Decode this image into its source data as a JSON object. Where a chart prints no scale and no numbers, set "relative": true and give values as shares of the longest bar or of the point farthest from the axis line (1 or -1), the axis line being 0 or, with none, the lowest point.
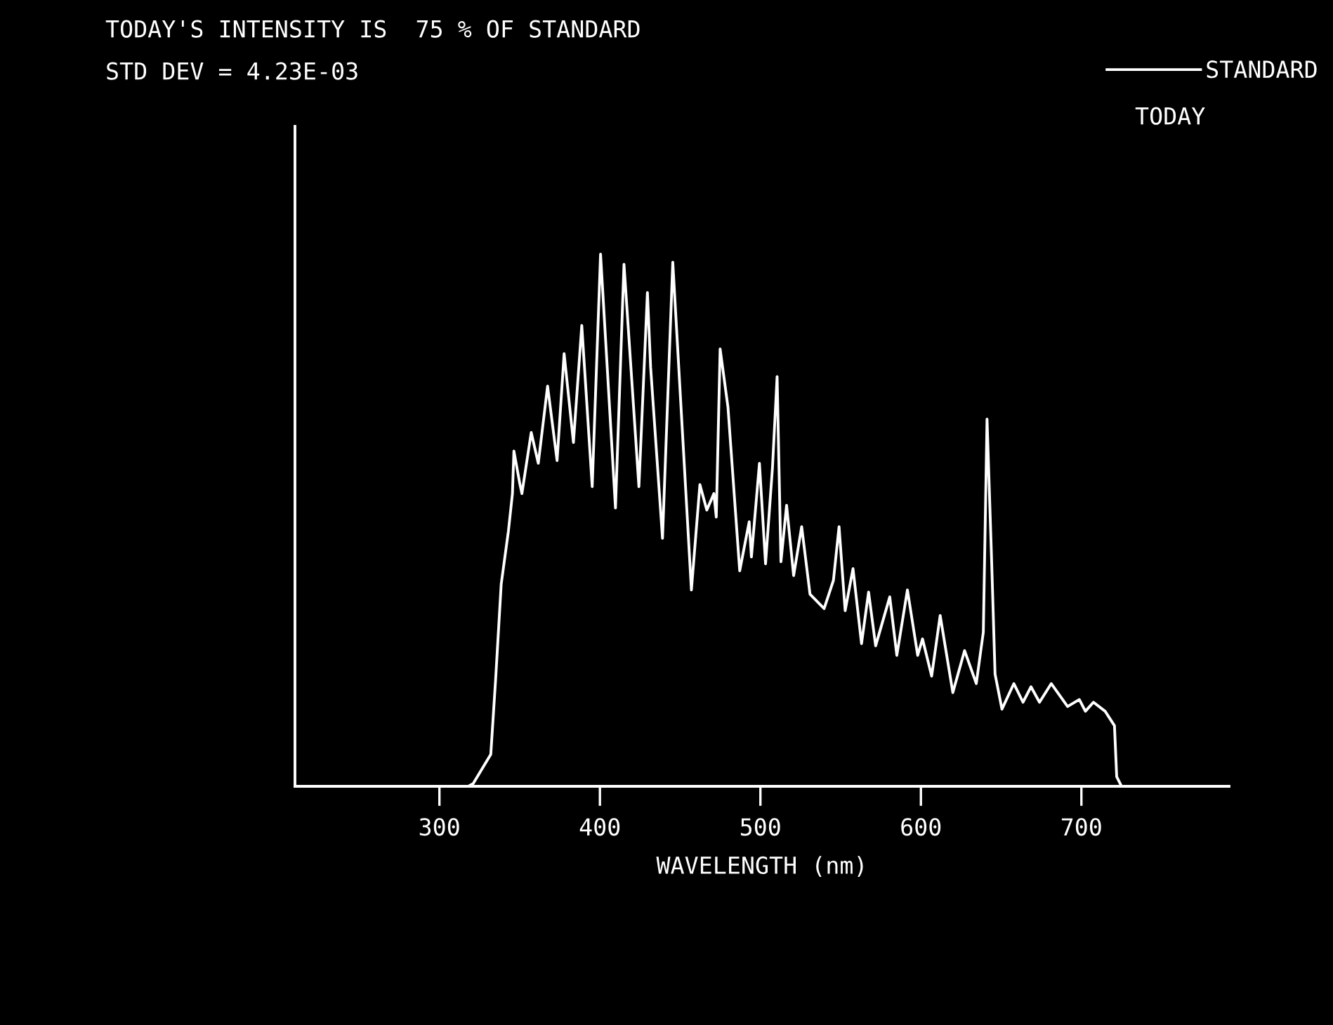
{
  "chart_data": {
    "type": "line",
    "title": "TODAY'S INTENSITY IS  75 % OF STANDARD",
    "subtitle": "STD DEV = 4.23E-03",
    "xlabel": "WAVELENGTH (nm)",
    "relative": true,
    "xlim": [
      210,
      792
    ],
    "xticks": [
      300,
      400,
      500,
      600,
      700
    ],
    "grid": false,
    "legend": "top right",
    "marker": "none",
    "line_style": "solid",
    "annotations": [
      "TODAY"
    ],
    "series": [
      {
        "name": "STANDARD",
        "color": "#ffffff",
        "x": [
          318,
          321,
          332,
          335,
          338.5,
          343,
          345.5,
          346.4,
          350,
          351.4,
          357.2,
          361.6,
          367.4,
          373.3,
          377.7,
          383.5,
          388.7,
          395.2,
          400.4,
          409.7,
          415,
          424.3,
          429.6,
          431.6,
          439,
          445.4,
          457,
          462.3,
          466.6,
          471,
          472.5,
          474.9,
          479.8,
          487.1,
          493,
          494.4,
          499.4,
          503.2,
          507.5,
          510.4,
          512.8,
          516.3,
          520.7,
          525.7,
          530.9,
          539.7,
          545.5,
          549,
          552.8,
          557.7,
          563,
          567.4,
          571.8,
          580.6,
          585,
          591.6,
          598,
          601,
          606.7,
          612,
          619.9,
          627.2,
          634.5,
          638.9,
          641.2,
          643.9,
          646.2,
          650.5,
          657.9,
          663.6,
          668.6,
          673.9,
          681.2,
          691.4,
          698.7,
          702.5,
          707.5,
          714.8,
          720.6,
          722,
          725
        ],
        "values": [
          0,
          0.005,
          0.06,
          0.2,
          0.38,
          0.48,
          0.55,
          0.63,
          0.57,
          0.55,
          0.665,
          0.607,
          0.752,
          0.612,
          0.813,
          0.646,
          0.866,
          0.563,
          1,
          0.523,
          0.981,
          0.563,
          0.928,
          0.787,
          0.466,
          0.985,
          0.369,
          0.567,
          0.519,
          0.55,
          0.506,
          0.822,
          0.712,
          0.405,
          0.497,
          0.431,
          0.607,
          0.418,
          0.598,
          0.77,
          0.422,
          0.528,
          0.396,
          0.488,
          0.361,
          0.334,
          0.387,
          0.488,
          0.33,
          0.409,
          0.268,
          0.365,
          0.264,
          0.356,
          0.246,
          0.369,
          0.246,
          0.277,
          0.207,
          0.321,
          0.176,
          0.255,
          0.193,
          0.29,
          0.69,
          0.44,
          0.211,
          0.145,
          0.193,
          0.158,
          0.187,
          0.158,
          0.193,
          0.15,
          0.163,
          0.141,
          0.158,
          0.141,
          0.114,
          0.018,
          0
        ]
      }
    ]
  }
}
